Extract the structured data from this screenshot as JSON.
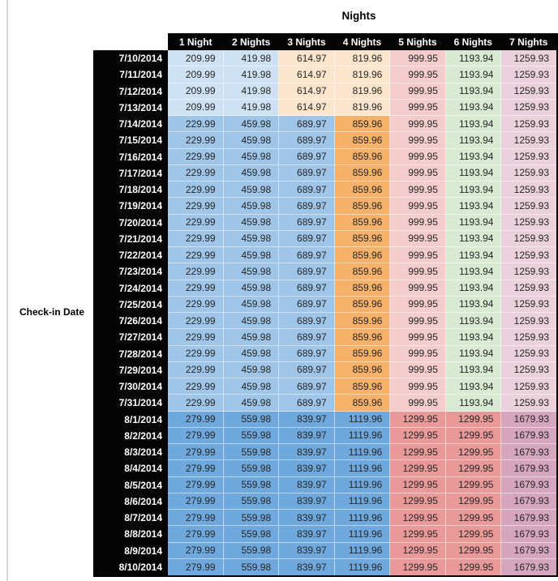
{
  "chart_data": {
    "type": "table",
    "title": "Nights",
    "row_axis_label": "Check-in Date",
    "columns": [
      "1 Night",
      "2 Nights",
      "3 Nights",
      "4 Nights",
      "5 Nights",
      "6 Nights",
      "7 Nights"
    ],
    "rows": [
      {
        "date": "7/10/2014",
        "band": "early",
        "values": [
          "209.99",
          "419.98",
          "614.97",
          "819.96",
          "999.95",
          "1193.94",
          "1259.93"
        ]
      },
      {
        "date": "7/11/2014",
        "band": "early",
        "values": [
          "209.99",
          "419.98",
          "614.97",
          "819.96",
          "999.95",
          "1193.94",
          "1259.93"
        ]
      },
      {
        "date": "7/12/2014",
        "band": "early",
        "values": [
          "209.99",
          "419.98",
          "614.97",
          "819.96",
          "999.95",
          "1193.94",
          "1259.93"
        ]
      },
      {
        "date": "7/13/2014",
        "band": "early",
        "values": [
          "209.99",
          "419.98",
          "614.97",
          "819.96",
          "999.95",
          "1193.94",
          "1259.93"
        ]
      },
      {
        "date": "7/14/2014",
        "band": "mid",
        "values": [
          "229.99",
          "459.98",
          "689.97",
          "859.96",
          "999.95",
          "1193.94",
          "1259.93"
        ]
      },
      {
        "date": "7/15/2014",
        "band": "mid",
        "values": [
          "229.99",
          "459.98",
          "689.97",
          "859.96",
          "999.95",
          "1193.94",
          "1259.93"
        ]
      },
      {
        "date": "7/16/2014",
        "band": "mid",
        "values": [
          "229.99",
          "459.98",
          "689.97",
          "859.96",
          "999.95",
          "1193.94",
          "1259.93"
        ]
      },
      {
        "date": "7/17/2014",
        "band": "mid",
        "values": [
          "229.99",
          "459.98",
          "689.97",
          "859.96",
          "999.95",
          "1193.94",
          "1259.93"
        ]
      },
      {
        "date": "7/18/2014",
        "band": "mid",
        "values": [
          "229.99",
          "459.98",
          "689.97",
          "859.96",
          "999.95",
          "1193.94",
          "1259.93"
        ]
      },
      {
        "date": "7/19/2014",
        "band": "mid",
        "values": [
          "229.99",
          "459.98",
          "689.97",
          "859.96",
          "999.95",
          "1193.94",
          "1259.93"
        ]
      },
      {
        "date": "7/20/2014",
        "band": "mid",
        "values": [
          "229.99",
          "459.98",
          "689.97",
          "859.96",
          "999.95",
          "1193.94",
          "1259.93"
        ]
      },
      {
        "date": "7/21/2014",
        "band": "mid",
        "values": [
          "229.99",
          "459.98",
          "689.97",
          "859.96",
          "999.95",
          "1193.94",
          "1259.93"
        ]
      },
      {
        "date": "7/22/2014",
        "band": "mid",
        "values": [
          "229.99",
          "459.98",
          "689.97",
          "859.96",
          "999.95",
          "1193.94",
          "1259.93"
        ]
      },
      {
        "date": "7/23/2014",
        "band": "mid",
        "values": [
          "229.99",
          "459.98",
          "689.97",
          "859.96",
          "999.95",
          "1193.94",
          "1259.93"
        ]
      },
      {
        "date": "7/24/2014",
        "band": "mid",
        "values": [
          "229.99",
          "459.98",
          "689.97",
          "859.96",
          "999.95",
          "1193.94",
          "1259.93"
        ]
      },
      {
        "date": "7/25/2014",
        "band": "mid",
        "values": [
          "229.99",
          "459.98",
          "689.97",
          "859.96",
          "999.95",
          "1193.94",
          "1259.93"
        ]
      },
      {
        "date": "7/26/2014",
        "band": "mid",
        "values": [
          "229.99",
          "459.98",
          "689.97",
          "859.96",
          "999.95",
          "1193.94",
          "1259.93"
        ]
      },
      {
        "date": "7/27/2014",
        "band": "mid",
        "values": [
          "229.99",
          "459.98",
          "689.97",
          "859.96",
          "999.95",
          "1193.94",
          "1259.93"
        ]
      },
      {
        "date": "7/28/2014",
        "band": "mid",
        "values": [
          "229.99",
          "459.98",
          "689.97",
          "859.96",
          "999.95",
          "1193.94",
          "1259.93"
        ]
      },
      {
        "date": "7/29/2014",
        "band": "mid",
        "values": [
          "229.99",
          "459.98",
          "689.97",
          "859.96",
          "999.95",
          "1193.94",
          "1259.93"
        ]
      },
      {
        "date": "7/30/2014",
        "band": "mid",
        "values": [
          "229.99",
          "459.98",
          "689.97",
          "859.96",
          "999.95",
          "1193.94",
          "1259.93"
        ]
      },
      {
        "date": "7/31/2014",
        "band": "mid",
        "values": [
          "229.99",
          "459.98",
          "689.97",
          "859.96",
          "999.95",
          "1193.94",
          "1259.93"
        ]
      },
      {
        "date": "8/1/2014",
        "band": "late",
        "values": [
          "279.99",
          "559.98",
          "839.97",
          "1119.96",
          "1299.95",
          "1299.95",
          "1679.93"
        ]
      },
      {
        "date": "8/2/2014",
        "band": "late",
        "values": [
          "279.99",
          "559.98",
          "839.97",
          "1119.96",
          "1299.95",
          "1299.95",
          "1679.93"
        ]
      },
      {
        "date": "8/3/2014",
        "band": "late",
        "values": [
          "279.99",
          "559.98",
          "839.97",
          "1119.96",
          "1299.95",
          "1299.95",
          "1679.93"
        ]
      },
      {
        "date": "8/4/2014",
        "band": "late",
        "values": [
          "279.99",
          "559.98",
          "839.97",
          "1119.96",
          "1299.95",
          "1299.95",
          "1679.93"
        ]
      },
      {
        "date": "8/5/2014",
        "band": "late",
        "values": [
          "279.99",
          "559.98",
          "839.97",
          "1119.96",
          "1299.95",
          "1299.95",
          "1679.93"
        ]
      },
      {
        "date": "8/6/2014",
        "band": "late",
        "values": [
          "279.99",
          "559.98",
          "839.97",
          "1119.96",
          "1299.95",
          "1299.95",
          "1679.93"
        ]
      },
      {
        "date": "8/7/2014",
        "band": "late",
        "values": [
          "279.99",
          "559.98",
          "839.97",
          "1119.96",
          "1299.95",
          "1299.95",
          "1679.93"
        ]
      },
      {
        "date": "8/8/2014",
        "band": "late",
        "values": [
          "279.99",
          "559.98",
          "839.97",
          "1119.96",
          "1299.95",
          "1299.95",
          "1679.93"
        ]
      },
      {
        "date": "8/9/2014",
        "band": "late",
        "values": [
          "279.99",
          "559.98",
          "839.97",
          "1119.96",
          "1299.95",
          "1299.95",
          "1679.93"
        ]
      },
      {
        "date": "8/10/2014",
        "band": "late",
        "values": [
          "279.99",
          "559.98",
          "839.97",
          "1119.96",
          "1299.95",
          "1299.95",
          "1679.93"
        ]
      }
    ],
    "band_colors": {
      "early": [
        "#cfe2f3",
        "#cfe2f3",
        "#fce5cd",
        "#fce5cd",
        "#f4cccc",
        "#d9ead3",
        "#ead1dc"
      ],
      "mid": [
        "#9fc5e8",
        "#9fc5e8",
        "#9fc5e8",
        "#f6b26b",
        "#f4cccc",
        "#d9ead3",
        "#ead1dc"
      ],
      "late": [
        "#6fa8dc",
        "#6fa8dc",
        "#6fa8dc",
        "#6fa8dc",
        "#ea9999",
        "#ea9999",
        "#d5a6bd"
      ]
    },
    "styles": {
      "header_bg": "#050505",
      "header_text": "#ffffff",
      "cell_text": "#262626",
      "side_rule": "#d8d8d8"
    },
    "layout": {
      "grid": "off",
      "header_position": "top",
      "row_labels_position": "left"
    }
  }
}
